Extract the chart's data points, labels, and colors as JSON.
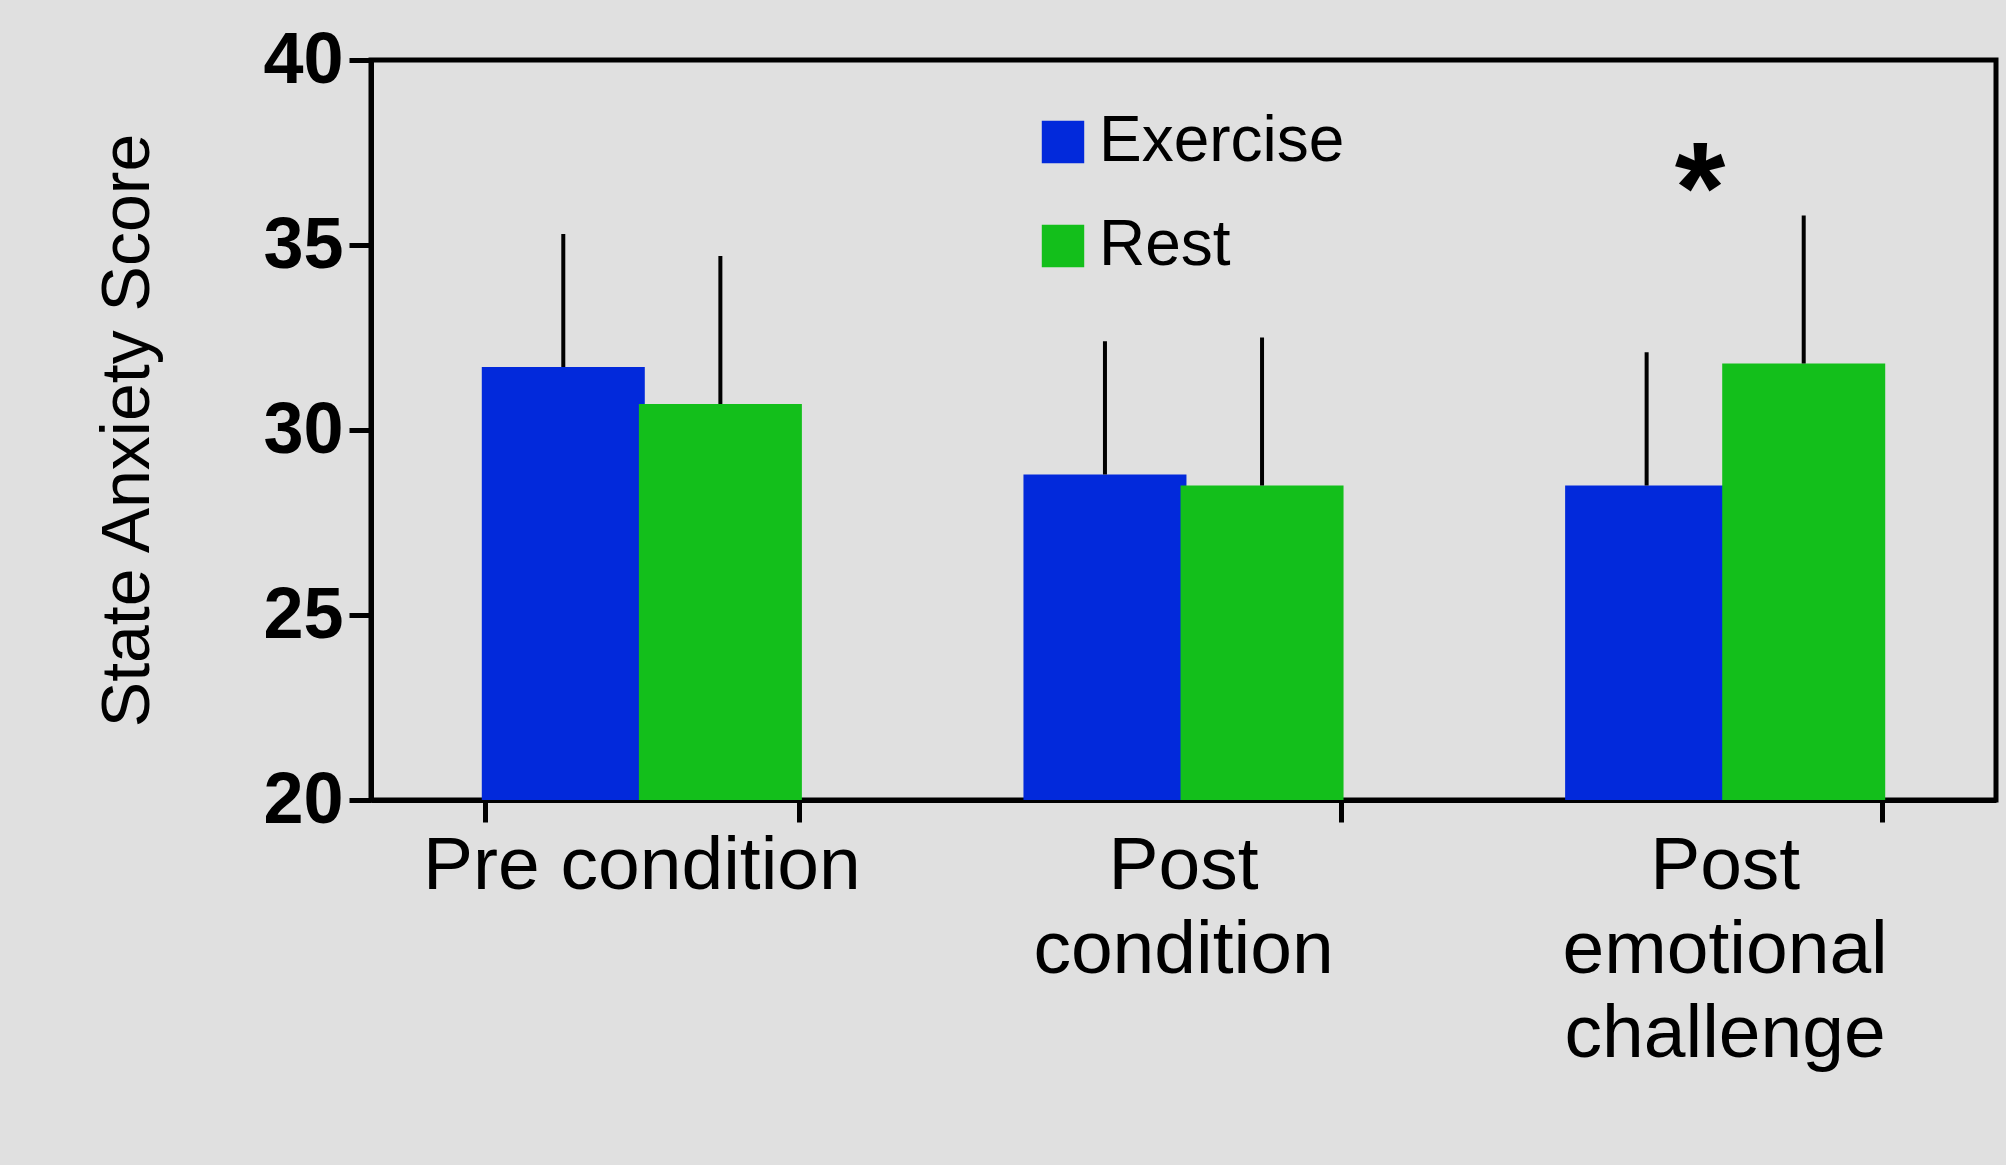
{
  "chart_data": {
    "type": "bar",
    "ylabel": "State Anxiety Score",
    "categories": [
      "Pre condition",
      "Post condition",
      "Post emotional challenge"
    ],
    "series": [
      {
        "name": "Exercise",
        "color": "#0229db",
        "values": [
          31.7,
          28.8,
          28.5
        ],
        "errors": [
          [
            31.7,
            35.3
          ],
          [
            28.8,
            32.4
          ],
          [
            28.5,
            32.1
          ]
        ]
      },
      {
        "name": "Rest",
        "color": "#13bf1b",
        "values": [
          30.7,
          28.5,
          31.8
        ],
        "errors": [
          [
            30.7,
            34.7
          ],
          [
            28.5,
            32.5
          ],
          [
            31.8,
            35.8
          ]
        ]
      }
    ],
    "ylim": [
      20,
      40
    ],
    "yticks": [
      20,
      25,
      30,
      35,
      40
    ],
    "grid": false,
    "legend": "top",
    "annotations": [
      "*"
    ]
  }
}
